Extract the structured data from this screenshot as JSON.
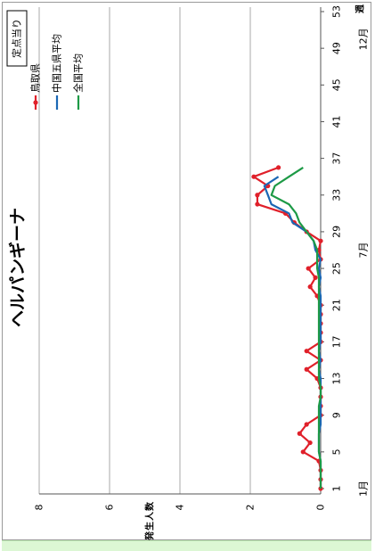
{
  "chart_data": {
    "type": "line",
    "title": "ヘルパンギーナ",
    "stamp": "定点当り",
    "ylabel": "発生人数",
    "xlabel": "週",
    "x_ticks": [
      1,
      5,
      9,
      13,
      17,
      21,
      25,
      29,
      33,
      37,
      41,
      45,
      49,
      53
    ],
    "month_labels": [
      {
        "label": "1月",
        "week": 1
      },
      {
        "label": "7月",
        "week": 27
      },
      {
        "label": "12月",
        "week": 50
      }
    ],
    "ylim": [
      0,
      8
    ],
    "y_ticks": [
      0,
      2,
      4,
      6,
      8
    ],
    "grid": true,
    "series": [
      {
        "name": "鳥取県",
        "color": "#e0202a",
        "marker": true,
        "x": [
          1,
          2,
          3,
          4,
          5,
          6,
          7,
          8,
          9,
          10,
          11,
          12,
          13,
          14,
          15,
          16,
          17,
          18,
          19,
          20,
          21,
          22,
          23,
          24,
          25,
          26,
          27,
          28,
          29,
          30,
          31,
          32,
          33,
          34,
          35,
          36
        ],
        "y": [
          0.0,
          0.0,
          0.0,
          0.05,
          0.5,
          0.3,
          0.6,
          0.4,
          0.0,
          0.0,
          0.0,
          0.0,
          0.1,
          0.4,
          0.0,
          0.4,
          0.0,
          0.0,
          0.0,
          0.0,
          0.0,
          0.1,
          0.3,
          0.15,
          0.35,
          0.0,
          0.05,
          0.0,
          0.4,
          0.75,
          1.0,
          1.8,
          1.8,
          1.5,
          1.9,
          1.2
        ]
      },
      {
        "name": "中国五県平均",
        "color": "#1b67b4",
        "marker": false,
        "x": [
          1,
          2,
          3,
          4,
          5,
          6,
          7,
          8,
          9,
          10,
          11,
          12,
          13,
          14,
          15,
          16,
          17,
          18,
          19,
          20,
          21,
          22,
          23,
          24,
          25,
          26,
          27,
          28,
          29,
          30,
          31,
          32,
          33,
          34,
          35
        ],
        "y": [
          0.0,
          0.0,
          0.0,
          0.0,
          0.05,
          0.05,
          0.05,
          0.0,
          0.0,
          0.0,
          0.0,
          0.0,
          0.0,
          0.05,
          0.0,
          0.05,
          0.0,
          0.0,
          0.0,
          0.0,
          0.0,
          0.0,
          0.05,
          0.0,
          0.05,
          0.0,
          0.15,
          0.2,
          0.4,
          0.8,
          0.9,
          1.4,
          1.5,
          1.6,
          1.2
        ]
      },
      {
        "name": "全国平均",
        "color": "#1d9a46",
        "marker": false,
        "x": [
          1,
          2,
          3,
          4,
          5,
          6,
          7,
          8,
          9,
          10,
          11,
          12,
          13,
          14,
          15,
          16,
          17,
          18,
          19,
          20,
          21,
          22,
          23,
          24,
          25,
          26,
          27,
          28,
          29,
          30,
          31,
          32,
          33,
          34,
          35,
          36
        ],
        "y": [
          0.0,
          0.0,
          0.0,
          0.0,
          0.05,
          0.05,
          0.05,
          0.05,
          0.05,
          0.05,
          0.0,
          0.0,
          0.05,
          0.05,
          0.05,
          0.05,
          0.05,
          0.05,
          0.05,
          0.05,
          0.05,
          0.05,
          0.05,
          0.05,
          0.1,
          0.1,
          0.1,
          0.2,
          0.4,
          0.6,
          0.7,
          0.9,
          1.4,
          1.3,
          0.9,
          0.5
        ]
      }
    ]
  }
}
